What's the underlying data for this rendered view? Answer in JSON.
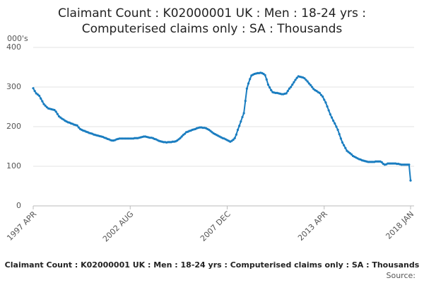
{
  "chart_data": {
    "type": "line",
    "title": [
      "Claimant Count : K02000001 UK : Men : 18-24 yrs :",
      "Computerised claims only : SA : Thousands"
    ],
    "y_label": "000's",
    "footer": "Claimant Count : K02000001 UK : Men : 18-24 yrs : Computerised claims only : SA : Thousands",
    "source": "Source:",
    "ylim": [
      0,
      400
    ],
    "yticks": [
      0,
      100,
      200,
      300,
      400
    ],
    "grid": true,
    "categories": [
      "1997 APR",
      null,
      null,
      null,
      null,
      null,
      null,
      null,
      null,
      null,
      null,
      null,
      null,
      null,
      null,
      null,
      null,
      null,
      null,
      null,
      null,
      null,
      null,
      null,
      null,
      null,
      null,
      null,
      null,
      null,
      null,
      null,
      null,
      null,
      null,
      null,
      null,
      null,
      null,
      null,
      null,
      null,
      null,
      null,
      null,
      null,
      null,
      null,
      null,
      null,
      null,
      null,
      null,
      null,
      null,
      null,
      null,
      null,
      null,
      null,
      null,
      null,
      null,
      null,
      "2002 AUG",
      null,
      null,
      null,
      null,
      null,
      null,
      null,
      null,
      null,
      null,
      null,
      null,
      null,
      null,
      null,
      null,
      null,
      null,
      null,
      null,
      null,
      null,
      null,
      null,
      null,
      null,
      null,
      null,
      null,
      null,
      null,
      null,
      null,
      null,
      null,
      null,
      null,
      null,
      null,
      null,
      null,
      null,
      null,
      null,
      null,
      null,
      null,
      null,
      null,
      null,
      null,
      null,
      null,
      null,
      null,
      null,
      null,
      null,
      null,
      null,
      null,
      null,
      null,
      "2007 DEC",
      null,
      null,
      null,
      null,
      null,
      null,
      null,
      null,
      null,
      null,
      null,
      null,
      null,
      null,
      null,
      null,
      null,
      null,
      null,
      null,
      null,
      null,
      null,
      null,
      null,
      null,
      null,
      null,
      null,
      null,
      null,
      null,
      null,
      null,
      null,
      null,
      null,
      null,
      null,
      null,
      null,
      null,
      null,
      null,
      null,
      null,
      null,
      null,
      null,
      null,
      null,
      null,
      null,
      null,
      null,
      null,
      null,
      null,
      null,
      null,
      null,
      null,
      null,
      "2013 APR",
      null,
      null,
      null,
      null,
      null,
      null,
      null,
      null,
      null,
      null,
      null,
      null,
      null,
      null,
      null,
      null,
      null,
      null,
      null,
      null,
      null,
      null,
      null,
      null,
      null,
      null,
      null,
      null,
      null,
      null,
      null,
      null,
      null,
      null,
      null,
      null,
      null,
      null,
      null,
      null,
      null,
      null,
      null,
      null,
      null,
      null,
      null,
      null,
      null,
      null,
      null,
      null,
      null,
      null,
      null,
      null,
      "2018 JAN"
    ],
    "series": [
      {
        "color": "#1a7dc0",
        "values": [
          297,
          290,
          284,
          281,
          278,
          271,
          264,
          257,
          253,
          249,
          246,
          245,
          244,
          243,
          242,
          238,
          232,
          226,
          223,
          220,
          218,
          215,
          213,
          211,
          210,
          208,
          207,
          205,
          204,
          203,
          198,
          194,
          192,
          190,
          189,
          187,
          186,
          184,
          183,
          182,
          180,
          179,
          178,
          177,
          176,
          175,
          174,
          172,
          171,
          169,
          168,
          166,
          165,
          165,
          166,
          168,
          169,
          170,
          170,
          170,
          170,
          170,
          170,
          170,
          170,
          170,
          170,
          171,
          171,
          171,
          172,
          173,
          174,
          175,
          175,
          174,
          173,
          172,
          172,
          171,
          169,
          168,
          166,
          164,
          163,
          162,
          161,
          161,
          160,
          161,
          161,
          161,
          162,
          162,
          163,
          165,
          168,
          171,
          175,
          179,
          182,
          186,
          187,
          189,
          190,
          192,
          193,
          194,
          196,
          197,
          198,
          198,
          197,
          197,
          196,
          194,
          192,
          189,
          186,
          183,
          181,
          179,
          177,
          175,
          173,
          171,
          170,
          168,
          166,
          164,
          162,
          164,
          167,
          171,
          180,
          192,
          202,
          213,
          224,
          234,
          265,
          296,
          309,
          320,
          329,
          331,
          333,
          334,
          335,
          335,
          336,
          335,
          333,
          330,
          319,
          306,
          299,
          292,
          287,
          286,
          285,
          285,
          284,
          283,
          282,
          282,
          283,
          284,
          290,
          296,
          300,
          306,
          312,
          318,
          323,
          327,
          326,
          325,
          324,
          322,
          318,
          314,
          309,
          305,
          300,
          295,
          292,
          290,
          287,
          285,
          280,
          276,
          268,
          261,
          251,
          241,
          231,
          223,
          215,
          208,
          200,
          192,
          181,
          170,
          160,
          153,
          146,
          139,
          136,
          133,
          130,
          126,
          124,
          122,
          120,
          118,
          117,
          115,
          114,
          113,
          112,
          111,
          111,
          111,
          111,
          111,
          112,
          112,
          112,
          112,
          110,
          106,
          104,
          105,
          107,
          107,
          107,
          107,
          107,
          107,
          106,
          106,
          105,
          104,
          104,
          104,
          104,
          104,
          104,
          64
        ]
      }
    ]
  }
}
